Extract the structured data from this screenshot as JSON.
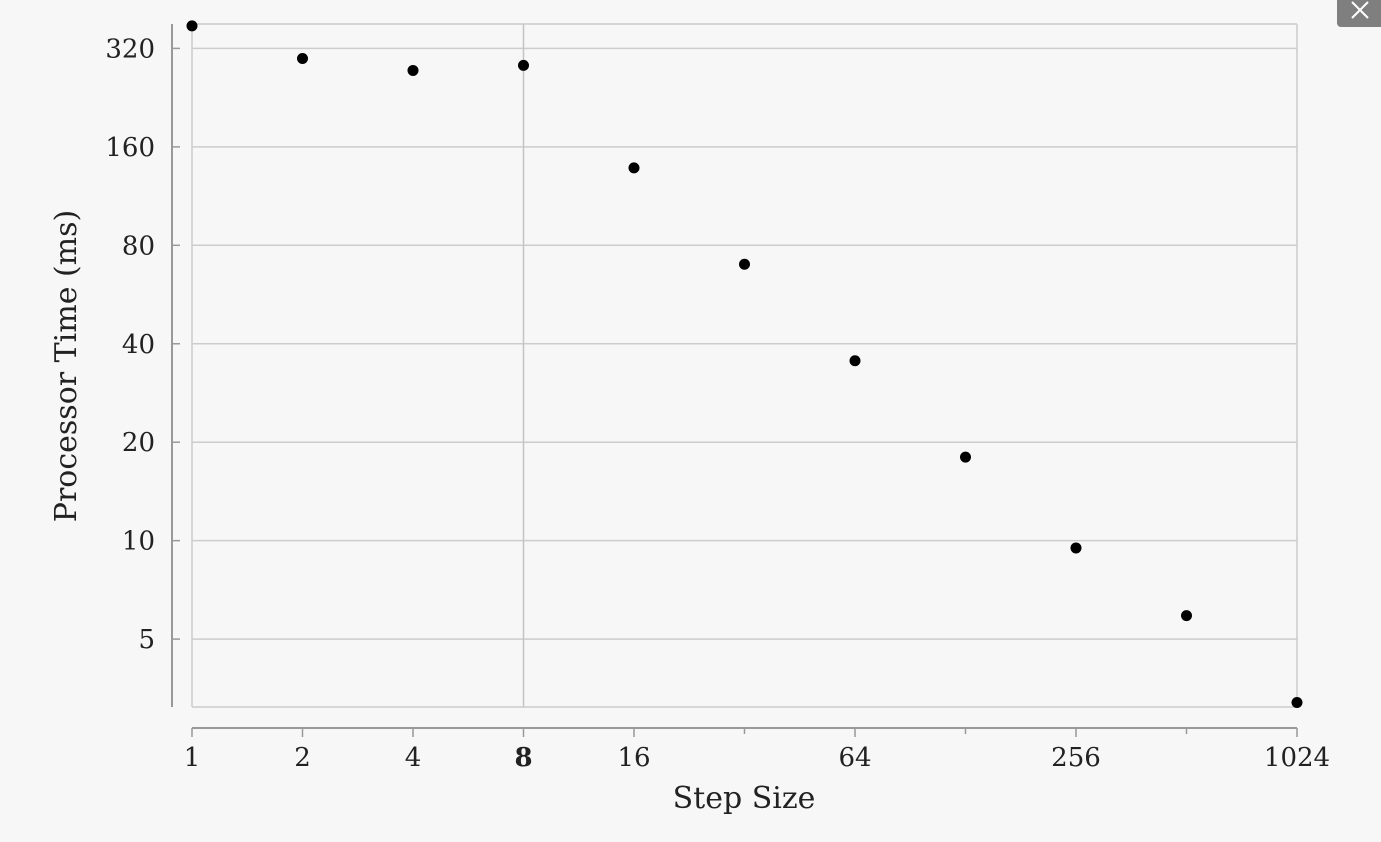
{
  "chart_data": {
    "type": "scatter",
    "title": "",
    "xlabel": "Step Size",
    "ylabel": "Processor Time (ms)",
    "x_scale": "log2",
    "y_scale": "log2",
    "xlim": [
      1,
      1024
    ],
    "ylim": [
      3.1,
      380
    ],
    "grid": true,
    "highlighted_x": 8,
    "x_ticks": [
      {
        "value": 1,
        "label": "1"
      },
      {
        "value": 2,
        "label": "2"
      },
      {
        "value": 4,
        "label": "4"
      },
      {
        "value": 8,
        "label": "8"
      },
      {
        "value": 16,
        "label": "16"
      },
      {
        "value": 64,
        "label": "64"
      },
      {
        "value": 256,
        "label": "256"
      },
      {
        "value": 1024,
        "label": "1024"
      }
    ],
    "x_minor_ticks": [
      32,
      128,
      512
    ],
    "y_ticks": [
      {
        "value": 5,
        "label": "5"
      },
      {
        "value": 10,
        "label": "10"
      },
      {
        "value": 20,
        "label": "20"
      },
      {
        "value": 40,
        "label": "40"
      },
      {
        "value": 80,
        "label": "80"
      },
      {
        "value": 160,
        "label": "160"
      },
      {
        "value": 320,
        "label": "320"
      }
    ],
    "x": [
      1,
      2,
      4,
      8,
      16,
      32,
      64,
      128,
      256,
      512,
      1024
    ],
    "y": [
      375,
      298,
      274,
      284,
      138,
      70,
      35.5,
      18,
      9.5,
      5.9,
      3.2
    ],
    "colors": {
      "point": "#000000",
      "grid": "#cccccc",
      "axis": "#999999",
      "highlight_line": "#c4c4c4",
      "background": "#f7f7f7"
    }
  },
  "ui": {
    "close_icon": "close-icon"
  }
}
